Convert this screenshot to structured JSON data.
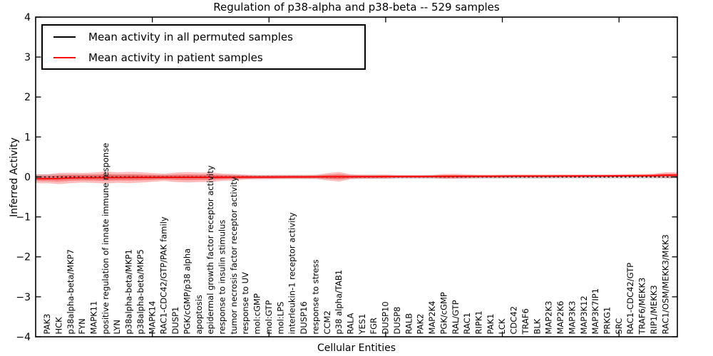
{
  "title": "Regulation of p38-alpha and p38-beta -- 529 samples",
  "chart_data": {
    "type": "area",
    "title": "Regulation of p38-alpha and p38-beta -- 529 samples",
    "xlabel": "Cellular Entities",
    "ylabel": "Inferred Activity",
    "ylim": [
      -4,
      4
    ],
    "yticks": [
      4,
      3,
      2,
      1,
      0,
      -1,
      -2,
      -3,
      -4
    ],
    "grid": false,
    "legend_position": "upper left",
    "legend": [
      {
        "label": "Mean activity in all permuted samples",
        "color": "#000000",
        "style": "dashed"
      },
      {
        "label": "Mean activity in patient samples",
        "color": "#ff0000",
        "style": "solid"
      }
    ],
    "top_tick_positions": [
      10,
      20,
      30,
      40,
      50
    ],
    "categories": [
      "PAK3",
      "HCK",
      "p38alpha-beta/MKP7",
      "FYN",
      "MAPK11",
      "positive regulation of innate immune response",
      "LYN",
      "p38alpha-beta/MKP1",
      "p38alpha-beta/MKP5",
      "MAPK14",
      "RAC1-CDC42/GTP/PAK family",
      "DUSP1",
      "PGK/cGMP/p38 alpha",
      "apoptosis",
      "epidermal growth factor receptor activity",
      "response to insulin stimulus",
      "tumor necrosis factor receptor activity",
      "response to UV",
      "mol:cGMP",
      "mol:GTP",
      "mol:LPS",
      "interleukin-1 receptor activity",
      "DUSP16",
      "response to stress",
      "CCM2",
      "p38 alpha/TAB1",
      "RALA",
      "YES1",
      "FGR",
      "DUSP10",
      "DUSP8",
      "RALB",
      "PAK2",
      "MAP2K4",
      "PGK/cGMP",
      "RAL/GTP",
      "RAC1",
      "RIPK1",
      "PAK1",
      "LCK",
      "CDC42",
      "TRAF6",
      "BLK",
      "MAP2K3",
      "MAP2K6",
      "MAP3K3",
      "MAP3K12",
      "MAP3K7IP1",
      "PRKG1",
      "SRC",
      "RAC1-CDC42/GTP",
      "TRAF6/MEKK3",
      "RIP1/MEKK3",
      "RAC1/OSM/MEKK3/MKK3"
    ],
    "series": [
      {
        "name": "Mean activity in all permuted samples",
        "color": "#000000",
        "style": "dashed",
        "values": [
          0,
          0,
          0,
          0,
          0,
          0,
          0,
          0,
          0,
          0,
          0,
          0,
          0,
          0,
          0,
          0,
          0,
          0,
          0,
          0,
          0,
          0,
          0,
          0,
          0,
          0,
          0,
          0,
          0,
          0,
          0,
          0,
          0,
          0,
          0,
          0,
          0,
          0,
          0,
          0,
          0,
          0,
          0,
          0,
          0,
          0,
          0,
          0,
          0,
          0,
          0,
          0,
          0,
          0
        ],
        "band_halfwidth": [
          0.065,
          0.065,
          0.065,
          0.065,
          0.065,
          0.065,
          0.065,
          0.065,
          0.055,
          0.055,
          0.055,
          0.055,
          0.055,
          0.055,
          0.055,
          0.055,
          0.05,
          0.05,
          0.05,
          0.05,
          0.05,
          0.05,
          0.05,
          0.05,
          0.05,
          0.05,
          0.05,
          0.05,
          0.05,
          0.05,
          0.045,
          0.045,
          0.045,
          0.045,
          0.045,
          0.045,
          0.045,
          0.045,
          0.045,
          0.045,
          0.045,
          0.045,
          0.045,
          0.045,
          0.04,
          0.04,
          0.04,
          0.04,
          0.04,
          0.04,
          0.04,
          0.04,
          0.04,
          0.04
        ]
      },
      {
        "name": "Mean activity in patient samples",
        "color": "#ff0000",
        "style": "solid",
        "values": [
          -0.045,
          -0.04,
          -0.025,
          -0.02,
          -0.02,
          -0.015,
          -0.015,
          -0.015,
          -0.012,
          -0.012,
          -0.01,
          -0.01,
          -0.01,
          -0.01,
          -0.008,
          -0.008,
          -0.006,
          -0.005,
          -0.005,
          -0.004,
          -0.002,
          0,
          0,
          0.002,
          0.004,
          0.005,
          0.005,
          0.006,
          0.006,
          0.008,
          0.01,
          0.01,
          0.01,
          0.012,
          0.014,
          0.015,
          0.015,
          0.015,
          0.016,
          0.018,
          0.02,
          0.02,
          0.02,
          0.02,
          0.022,
          0.022,
          0.024,
          0.025,
          0.025,
          0.028,
          0.03,
          0.032,
          0.035,
          0.045
        ],
        "band_halfwidth_outer": [
          0.11,
          0.14,
          0.13,
          0.12,
          0.13,
          0.15,
          0.13,
          0.14,
          0.13,
          0.11,
          0.09,
          0.12,
          0.13,
          0.12,
          0.12,
          0.09,
          0.08,
          0.06,
          0.05,
          0.05,
          0.05,
          0.05,
          0.05,
          0.05,
          0.09,
          0.12,
          0.06,
          0.05,
          0.05,
          0.05,
          0.04,
          0.04,
          0.04,
          0.04,
          0.06,
          0.06,
          0.05,
          0.04,
          0.04,
          0.04,
          0.04,
          0.04,
          0.04,
          0.04,
          0.04,
          0.04,
          0.04,
          0.04,
          0.04,
          0.04,
          0.04,
          0.04,
          0.05,
          0.07
        ],
        "inner_band_ratio": 0.55
      }
    ],
    "band_colors": {
      "permuted": "rgba(110,120,130,0.28)",
      "patient_outer": "rgba(255,0,0,0.26)",
      "patient_inner": "rgba(255,0,0,0.30)"
    }
  }
}
